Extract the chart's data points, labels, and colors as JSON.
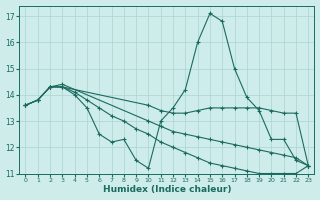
{
  "xlabel": "Humidex (Indice chaleur)",
  "background_color": "#ceecea",
  "grid_color": "#aad4d0",
  "line_color": "#1a6b5e",
  "xlim": [
    -0.5,
    23.5
  ],
  "ylim": [
    11,
    17.4
  ],
  "yticks": [
    11,
    12,
    13,
    14,
    15,
    16,
    17
  ],
  "xticks": [
    0,
    1,
    2,
    3,
    4,
    5,
    6,
    7,
    8,
    9,
    10,
    11,
    12,
    13,
    14,
    15,
    16,
    17,
    18,
    19,
    20,
    21,
    22,
    23
  ],
  "series": [
    {
      "x": [
        0,
        1,
        2,
        3,
        4,
        5,
        6,
        7,
        8,
        9,
        10,
        11,
        12,
        13,
        14,
        15,
        16,
        17,
        18,
        19,
        20,
        21,
        22,
        23
      ],
      "y": [
        13.6,
        13.8,
        14.3,
        14.3,
        14.0,
        13.5,
        12.5,
        12.2,
        12.3,
        11.5,
        11.2,
        13.0,
        13.5,
        14.2,
        16.0,
        17.1,
        16.8,
        15.0,
        13.9,
        13.4,
        12.3,
        12.3,
        11.5,
        11.3
      ]
    },
    {
      "x": [
        0,
        1,
        2,
        3,
        10,
        11,
        12,
        13,
        14,
        15,
        16,
        17,
        18,
        19,
        20,
        21,
        22,
        23
      ],
      "y": [
        13.6,
        13.8,
        14.3,
        14.3,
        13.6,
        13.4,
        13.3,
        13.3,
        13.4,
        13.5,
        13.5,
        13.5,
        13.5,
        13.5,
        13.4,
        13.3,
        13.3,
        11.3
      ]
    },
    {
      "x": [
        0,
        1,
        2,
        3,
        10,
        11,
        12,
        13,
        14,
        15,
        16,
        17,
        18,
        19,
        20,
        21,
        22,
        23
      ],
      "y": [
        13.6,
        13.8,
        14.3,
        14.4,
        13.0,
        12.8,
        12.6,
        12.5,
        12.4,
        12.3,
        12.2,
        12.1,
        12.0,
        11.9,
        11.8,
        11.7,
        11.6,
        11.3
      ]
    },
    {
      "x": [
        0,
        1,
        2,
        3,
        4,
        5,
        6,
        7,
        8,
        9,
        10,
        11,
        12,
        13,
        14,
        15,
        16,
        17,
        18,
        19,
        20,
        21,
        22,
        23
      ],
      "y": [
        13.6,
        13.8,
        14.3,
        14.3,
        14.1,
        13.8,
        13.5,
        13.2,
        13.0,
        12.7,
        12.5,
        12.2,
        12.0,
        11.8,
        11.6,
        11.4,
        11.3,
        11.2,
        11.1,
        11.0,
        11.0,
        11.0,
        11.0,
        11.3
      ]
    }
  ]
}
